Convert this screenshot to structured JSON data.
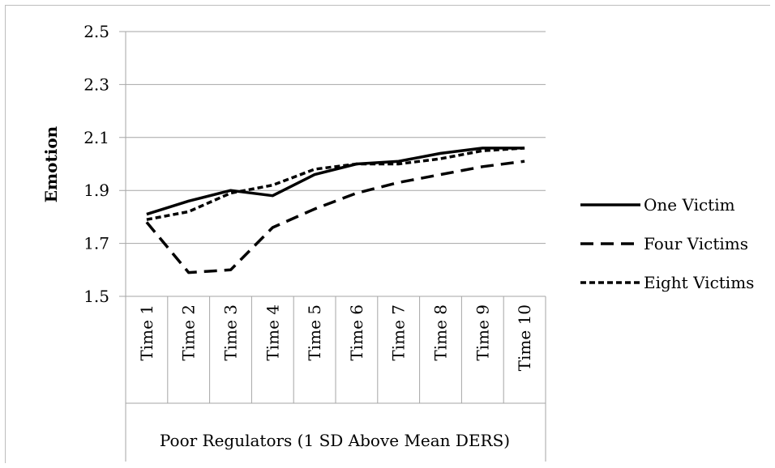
{
  "chart_data": {
    "type": "line",
    "title": "",
    "xlabel": "",
    "group_label": "Poor Regulators (1 SD Above Mean DERS)",
    "ylabel": "Emotion",
    "ylim": [
      1.5,
      2.5
    ],
    "yticks": [
      "1.5",
      "1.7",
      "1.9",
      "2.1",
      "2.3",
      "2.5"
    ],
    "ytick_values": [
      1.5,
      1.7,
      1.9,
      2.1,
      2.3,
      2.5
    ],
    "categories": [
      "Time 1",
      "Time 2",
      "Time 3",
      "Time 4",
      "Time 5",
      "Time 6",
      "Time 7",
      "Time 8",
      "Time 9",
      "Time 10"
    ],
    "grid": true,
    "legend_position": "right",
    "series": [
      {
        "name": "One Victim",
        "style": "solid",
        "values": [
          1.81,
          1.86,
          1.9,
          1.88,
          1.96,
          2.0,
          2.01,
          2.04,
          2.06,
          2.06
        ]
      },
      {
        "name": "Four Victims",
        "style": "long-dash",
        "values": [
          1.78,
          1.59,
          1.6,
          1.76,
          1.83,
          1.89,
          1.93,
          1.96,
          1.99,
          2.01
        ]
      },
      {
        "name": "Eight Victims",
        "style": "short-dash",
        "values": [
          1.79,
          1.82,
          1.89,
          1.92,
          1.98,
          2.0,
          2.0,
          2.02,
          2.05,
          2.06
        ]
      }
    ]
  }
}
